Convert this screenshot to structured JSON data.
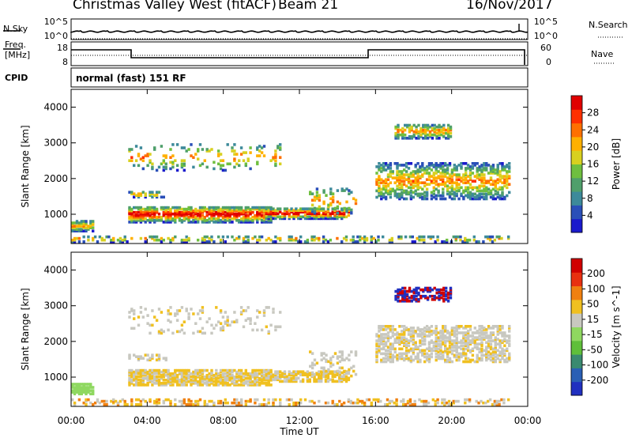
{
  "header": {
    "site": "Christmas Valley West (fitACF)",
    "beam": "Beam 21",
    "date": "16/Nov/2017"
  },
  "top_panels": {
    "nsky_label": "N.Sky",
    "nsearch_label": "N.Search",
    "nsky_ticks": [
      "10^5",
      "10^0"
    ],
    "nsearch_ticks": [
      "10^5",
      "10^0"
    ],
    "freq_label": "Freq.",
    "freq_unit": "[MHz]",
    "freq_ticks": [
      "18",
      "8"
    ],
    "nave_label": "Nave",
    "nave_ticks": [
      "60",
      "0"
    ],
    "cpid_label": "CPID",
    "cpid_text": "normal (fast) 151 RF"
  },
  "chart_data": [
    {
      "type": "heatmap",
      "name": "power",
      "ylabel": "Slant Range [km]",
      "yticks": [
        "4000",
        "3000",
        "2000",
        "1000"
      ],
      "ylim": [
        180,
        4500
      ],
      "colorbar_label": "Power [dB]",
      "colorbar_ticks": [
        "28",
        "24",
        "20",
        "16",
        "12",
        "8",
        "4"
      ],
      "colors": [
        "#1a1acc",
        "#2a4fb8",
        "#3d8a9a",
        "#4f9f6b",
        "#6fbf3f",
        "#d8d020",
        "#ffb000",
        "#ff7000",
        "#ff3000",
        "#e00000"
      ],
      "xlim": [
        0,
        24
      ]
    },
    {
      "type": "heatmap",
      "name": "velocity",
      "ylabel": "Slant Range [km]",
      "yticks": [
        "4000",
        "3000",
        "2000",
        "1000"
      ],
      "ylim": [
        180,
        4500
      ],
      "colorbar_label": "Velocity [m s^-1]",
      "colorbar_ticks": [
        "200",
        "100",
        "50",
        "15",
        "-15",
        "-50",
        "-100",
        "-200"
      ],
      "colors": [
        "#2030c0",
        "#2a5fb5",
        "#3a8a70",
        "#5fbf3a",
        "#8fd860",
        "#c8c8c0",
        "#f0c020",
        "#f08010",
        "#e83010",
        "#d00000"
      ],
      "xlim": [
        0,
        24
      ],
      "xlabel": "Time UT",
      "xticks": [
        "00:00",
        "04:00",
        "08:00",
        "12:00",
        "16:00",
        "20:00",
        "00:00"
      ]
    }
  ]
}
